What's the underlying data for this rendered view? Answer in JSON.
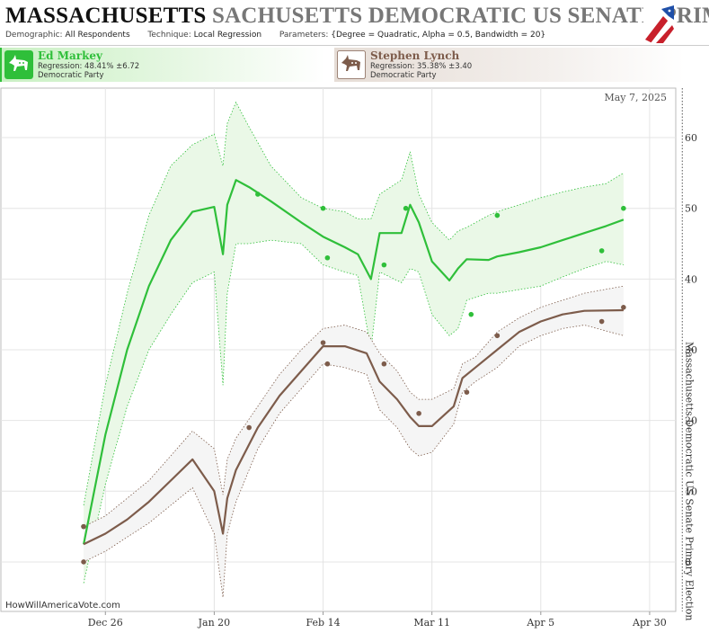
{
  "header": {
    "title_primary": "MASSACHUSETTS",
    "title_secondary": "SACHUSETTS DEMOCRATIC US SENATE PRIM",
    "demographic_label": "Demographic:",
    "demographic_value": "All Respondents",
    "technique_label": "Technique:",
    "technique_value": "Local Regression",
    "parameters_label": "Parameters:",
    "parameters_value": "{Degree = Quadratic, Alpha = 0.5, Bandwidth = 20}"
  },
  "candidates": [
    {
      "name": "Ed Markey",
      "regression": "Regression: 48.41% ±6.72",
      "party": "Democratic Party",
      "color": "#2fbf3a"
    },
    {
      "name": "Stephen Lynch",
      "regression": "Regression: 35.38% ±3.40",
      "party": "Democratic Party",
      "color": "#7d5c4b"
    }
  ],
  "watermark": "HowWillAmericaVote.com",
  "chart_data": {
    "type": "line",
    "x_tick_labels": [
      "Dec 26",
      "Jan 20",
      "Feb 14",
      "Mar 11",
      "Apr 5",
      "Apr 30"
    ],
    "x_tick_days": [
      0,
      25,
      50,
      75,
      100,
      125
    ],
    "x_range_days": [
      -24,
      131
    ],
    "y_ticks": [
      0,
      10,
      20,
      30,
      40,
      50,
      60
    ],
    "ylim": [
      -7,
      67
    ],
    "date_annotation": "May 7, 2025",
    "election_label": "Massachusetts Democratic US Senate Primary Election",
    "election_day": 132.5,
    "grid": true,
    "series": [
      {
        "name": "Ed Markey",
        "color": "#2fbf3a",
        "fill": "#eaf8e7",
        "x": [
          -5,
          0,
          5,
          10,
          15,
          20,
          25,
          27,
          28,
          30,
          33,
          38,
          45,
          50,
          55,
          58,
          61,
          63,
          68,
          70,
          72,
          75,
          79,
          81,
          83,
          88,
          90,
          95,
          100,
          105,
          110,
          115,
          119
        ],
        "y": [
          2.5,
          18,
          30,
          39,
          45.5,
          49.5,
          50.2,
          43.5,
          50.5,
          54,
          53,
          51,
          48,
          46,
          44.5,
          43.5,
          40,
          46.5,
          46.5,
          50.5,
          48,
          42.5,
          39.8,
          41.5,
          42.8,
          42.7,
          43.2,
          43.8,
          44.5,
          45.5,
          46.5,
          47.5,
          48.4
        ],
        "upper": [
          8,
          25,
          38,
          49,
          56,
          59,
          60.5,
          56,
          62,
          65,
          61.5,
          56,
          51.5,
          50,
          49.5,
          48.5,
          48.5,
          52,
          54,
          58,
          52,
          48,
          45.5,
          46.8,
          47.3,
          49,
          49.5,
          50.5,
          51.5,
          52.3,
          53,
          53.5,
          55
        ],
        "lower": [
          -3,
          11,
          22,
          30,
          35,
          39.5,
          41,
          25,
          38,
          45,
          45,
          45.5,
          45,
          42,
          41,
          40.5,
          30,
          41,
          39.5,
          41.5,
          41,
          35,
          32,
          33,
          37,
          38,
          38,
          38.5,
          39,
          40.3,
          41.5,
          42.5,
          42
        ],
        "points_x": [
          -5,
          35,
          50,
          51,
          64,
          69,
          84,
          90,
          114,
          119
        ],
        "points_y": [
          5,
          52,
          50,
          43,
          42,
          50,
          35,
          49,
          44,
          50
        ]
      },
      {
        "name": "Stephen Lynch",
        "color": "#7d5c4b",
        "fill": "#f5f5f5",
        "x": [
          -5,
          0,
          5,
          10,
          15,
          20,
          25,
          27,
          28,
          30,
          35,
          40,
          45,
          50,
          55,
          60,
          63,
          67,
          70,
          72,
          75,
          80,
          82,
          85,
          90,
          95,
          100,
          105,
          110,
          119
        ],
        "y": [
          2.5,
          4,
          6,
          8.5,
          11.5,
          14.5,
          10,
          4,
          9,
          13,
          19,
          23.5,
          27,
          30.5,
          30.5,
          29.5,
          25.5,
          23,
          20.5,
          19.2,
          19.2,
          22,
          26,
          27.5,
          30,
          32.5,
          34,
          35,
          35.5,
          35.6
        ],
        "upper": [
          5,
          6.5,
          9,
          11.5,
          15,
          18.5,
          16,
          9.5,
          14.5,
          17.5,
          22,
          26.5,
          30,
          33,
          33.5,
          32.5,
          29.5,
          27,
          24,
          23,
          23,
          24.5,
          28,
          29,
          32.5,
          34.5,
          36,
          37,
          38,
          39
        ],
        "lower": [
          0,
          1.5,
          3.5,
          5.5,
          8,
          10.5,
          4,
          -5,
          4,
          8.5,
          16,
          21,
          24.5,
          28,
          27.5,
          26.5,
          21.5,
          19,
          16,
          15,
          15.5,
          19.5,
          24,
          25.5,
          27.5,
          30.5,
          32,
          33,
          33.5,
          32
        ]
      }
    ],
    "lynch_points_x": [
      -5,
      -5,
      33,
      50,
      51,
      64,
      72,
      83,
      90,
      114,
      119
    ],
    "lynch_points_y": [
      5,
      0,
      19,
      31,
      28,
      28,
      21,
      24,
      32,
      34,
      36
    ]
  }
}
